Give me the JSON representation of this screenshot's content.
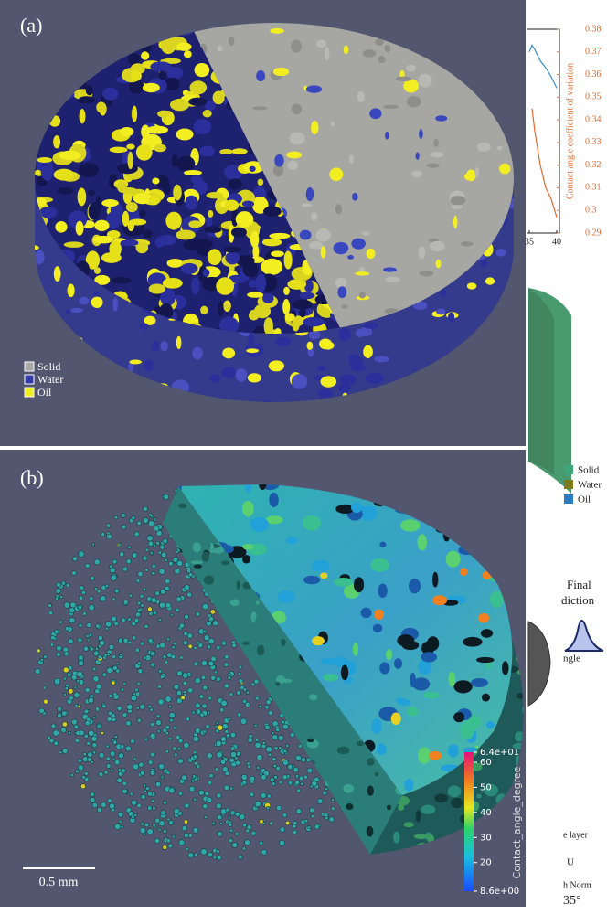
{
  "panel_a": {
    "label": "(a)",
    "legend": [
      "Solid",
      "Water",
      "Oil"
    ]
  },
  "panel_b": {
    "label": "(b)",
    "scale_bar": "0.5 mm",
    "colorbar": {
      "title": "Contact_angle_degree",
      "range": [
        8.6,
        64
      ],
      "ticks": [
        {
          "value": 64,
          "label": "6.4e+01"
        },
        60,
        50,
        40,
        30,
        20,
        {
          "value": 8.6,
          "label": "8.6e+00"
        }
      ]
    }
  },
  "right_strip": {
    "chart": {
      "type": "line",
      "ylabel": "Contact angle coefficient of variation",
      "ylim": [
        0.29,
        0.38
      ],
      "yticks": [
        0.29,
        0.3,
        0.31,
        0.32,
        0.33,
        0.34,
        0.35,
        0.36,
        0.37,
        0.38
      ],
      "xlim": [
        34.5,
        40.5
      ],
      "xticks": [
        35,
        40
      ],
      "series": [
        {
          "color": "#3a8fd0",
          "x": [
            35,
            35.5,
            36,
            37,
            38,
            39,
            40
          ],
          "values": [
            0.37,
            0.373,
            0.371,
            0.366,
            0.363,
            0.359,
            0.354
          ]
        },
        {
          "color": "#e06a2c",
          "x": [
            35.5,
            36,
            37,
            38,
            39,
            40
          ],
          "values": [
            0.345,
            0.335,
            0.32,
            0.31,
            0.305,
            0.297
          ]
        }
      ]
    },
    "legend": [
      "Solid",
      "Water",
      "Oil"
    ],
    "fragments": [
      "Final",
      "diction",
      "ngle",
      "e layer",
      "U",
      "h Norm",
      "35°"
    ]
  }
}
